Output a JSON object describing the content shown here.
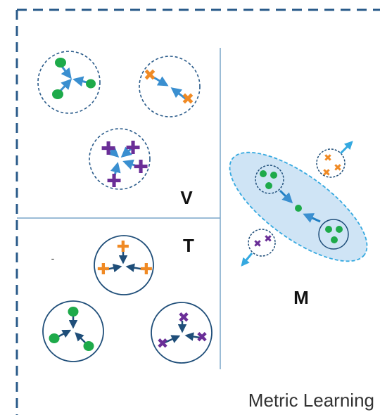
{
  "title": "Metric Learning",
  "panels": {
    "v": {
      "label": "V"
    },
    "t": {
      "label": "T",
      "stray_mark": "-"
    },
    "m": {
      "label": "M"
    }
  },
  "colors": {
    "frame_dash": "#2a5b8a",
    "panel_divider": "#7aa6c8",
    "dashed_circle": "#2a5b8a",
    "solid_circle": "#1f4e79",
    "arrow_light": "#3a8fd0",
    "arrow_dark": "#1f4e79",
    "ellipse_fill": "#cfe4f5",
    "ellipse_stroke": "#35a9e0",
    "green": "#1eaa4a",
    "orange": "#f08a24",
    "purple": "#6a2e97"
  },
  "icons": [
    "green-dot-icon",
    "orange-cross-icon",
    "purple-plus-icon",
    "purple-cross-icon",
    "arrow-icon"
  ]
}
